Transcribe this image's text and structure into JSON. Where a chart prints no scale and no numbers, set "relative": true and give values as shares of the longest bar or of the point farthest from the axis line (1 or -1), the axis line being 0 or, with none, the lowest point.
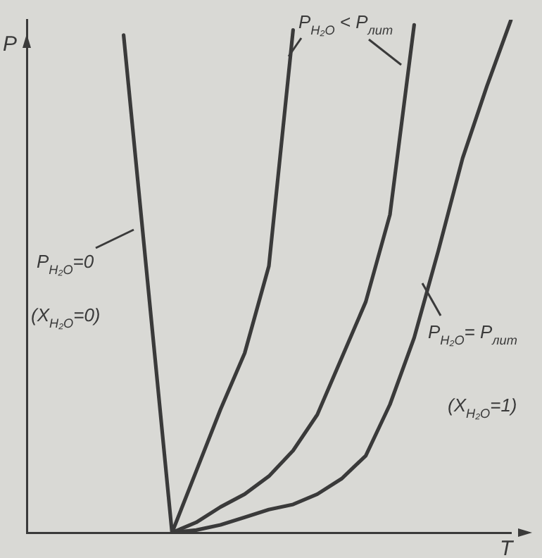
{
  "chart_data": {
    "type": "line",
    "xlabel": "T",
    "ylabel": "P",
    "relative": true,
    "legend": false,
    "marker": "none",
    "grid": false,
    "categories": [
      null,
      null,
      null,
      null,
      null,
      null,
      null,
      null,
      null,
      null,
      null,
      null,
      null,
      null,
      null,
      null,
      null,
      null,
      null,
      null,
      null
    ],
    "series": [
      {
        "color": "#3a3a3a",
        "values": [
          null,
          null,
          null,
          null,
          0.97,
          null,
          0,
          null,
          null,
          null,
          null,
          null,
          null,
          null,
          null,
          null,
          null,
          null,
          null,
          null,
          null
        ]
      },
      {
        "color": "#3a3a3a",
        "values": [
          null,
          null,
          null,
          null,
          null,
          null,
          0,
          0.12,
          0.24,
          0.35,
          0.52,
          0.98,
          null,
          null,
          null,
          null,
          null,
          null,
          null,
          null,
          null
        ]
      },
      {
        "color": "#3a3a3a",
        "values": [
          null,
          null,
          null,
          null,
          null,
          null,
          0,
          0.02,
          0.05,
          0.075,
          0.11,
          0.16,
          0.23,
          0.34,
          0.45,
          0.62,
          0.99,
          null,
          null,
          null,
          null
        ]
      },
      {
        "color": "#3a3a3a",
        "values": [
          null,
          null,
          null,
          null,
          null,
          null,
          0,
          0.005,
          0.015,
          0.03,
          0.045,
          0.055,
          0.075,
          0.105,
          0.15,
          0.25,
          0.38,
          0.55,
          0.73,
          0.87,
          1
        ]
      }
    ],
    "annotations": [
      "P$_{H₂O}$=0",
      "(X$_{H₂O}$=0)",
      "P$_{H₂O}$ < P$_{лит}$",
      "P$_{H₂O}$= P$_{лит}$",
      "(X$_{H₂O}$=1)"
    ]
  }
}
